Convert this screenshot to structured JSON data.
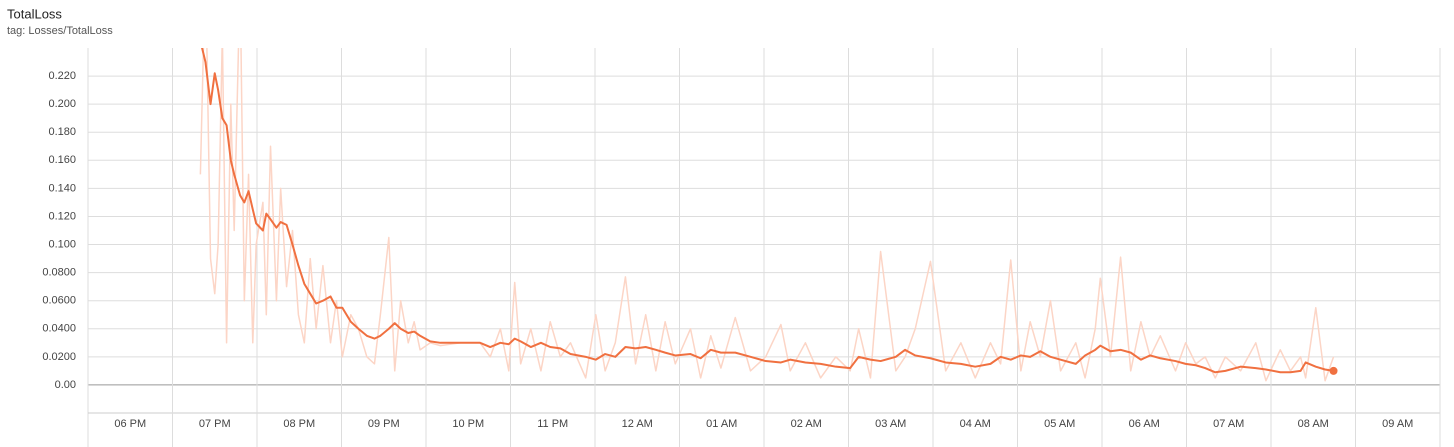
{
  "chart_data": {
    "type": "line",
    "title": "TotalLoss",
    "subtitle": "tag: Losses/TotalLoss",
    "x": [
      18.33,
      18.39,
      18.45,
      18.5,
      18.54,
      18.59,
      18.64,
      18.69,
      18.73,
      18.8,
      18.85,
      18.9,
      18.95,
      18.99,
      19.07,
      19.11,
      19.16,
      19.23,
      19.28,
      19.35,
      19.42,
      19.49,
      19.56,
      19.63,
      19.7,
      19.78,
      19.87,
      19.94,
      20.01,
      20.11,
      20.2,
      20.3,
      20.39,
      20.46,
      20.56,
      20.63,
      20.7,
      20.79,
      20.86,
      20.93,
      21.05,
      21.17,
      21.41,
      21.64,
      21.76,
      21.88,
      21.98,
      22.05,
      22.12,
      22.24,
      22.36,
      22.47,
      22.59,
      22.71,
      22.89,
      23.01,
      23.12,
      23.24,
      23.36,
      23.48,
      23.6,
      23.72,
      23.83,
      23.95,
      24.13,
      24.25,
      24.37,
      24.49,
      24.66,
      24.84,
      25.02,
      25.2,
      25.31,
      25.49,
      25.67,
      25.85,
      26.02,
      26.12,
      26.26,
      26.38,
      26.56,
      26.67,
      26.79,
      26.97,
      27.15,
      27.33,
      27.5,
      27.68,
      27.8,
      27.92,
      28.04,
      28.15,
      28.27,
      28.39,
      28.51,
      28.69,
      28.8,
      28.92,
      28.98,
      29.1,
      29.22,
      29.34,
      29.46,
      29.57,
      29.69,
      29.87,
      29.99,
      30.11,
      30.22,
      30.34,
      30.46,
      30.64,
      30.82,
      30.94,
      31.11,
      31.23,
      31.35,
      31.41,
      31.53,
      31.64,
      31.74
    ],
    "series": [
      {
        "color": "#fcd5c6",
        "values": [
          0.15,
          0.3,
          0.09,
          0.065,
          0.1,
          0.25,
          0.03,
          0.2,
          0.11,
          0.29,
          0.06,
          0.15,
          0.03,
          0.1,
          0.13,
          0.05,
          0.17,
          0.06,
          0.14,
          0.07,
          0.11,
          0.05,
          0.03,
          0.09,
          0.04,
          0.085,
          0.03,
          0.06,
          0.02,
          0.05,
          0.04,
          0.02,
          0.015,
          0.05,
          0.105,
          0.01,
          0.06,
          0.03,
          0.045,
          0.025,
          0.03,
          0.028,
          0.03,
          0.03,
          0.02,
          0.04,
          0.01,
          0.073,
          0.015,
          0.04,
          0.01,
          0.045,
          0.02,
          0.03,
          0.005,
          0.05,
          0.01,
          0.03,
          0.077,
          0.015,
          0.05,
          0.01,
          0.045,
          0.015,
          0.04,
          0.005,
          0.035,
          0.012,
          0.048,
          0.01,
          0.02,
          0.043,
          0.01,
          0.03,
          0.005,
          0.02,
          0.01,
          0.04,
          0.005,
          0.095,
          0.01,
          0.02,
          0.04,
          0.088,
          0.01,
          0.03,
          0.005,
          0.03,
          0.015,
          0.089,
          0.01,
          0.045,
          0.02,
          0.06,
          0.01,
          0.03,
          0.005,
          0.04,
          0.076,
          0.02,
          0.091,
          0.01,
          0.045,
          0.02,
          0.035,
          0.01,
          0.03,
          0.015,
          0.02,
          0.005,
          0.02,
          0.01,
          0.03,
          0.003,
          0.025,
          0.01,
          0.02,
          0.005,
          0.055,
          0.003,
          0.02
        ]
      },
      {
        "color": "#f07040",
        "values": [
          0.245,
          0.23,
          0.2,
          0.222,
          0.21,
          0.19,
          0.185,
          0.16,
          0.15,
          0.135,
          0.13,
          0.138,
          0.125,
          0.115,
          0.11,
          0.122,
          0.118,
          0.112,
          0.116,
          0.114,
          0.1,
          0.085,
          0.072,
          0.065,
          0.058,
          0.06,
          0.063,
          0.055,
          0.055,
          0.045,
          0.04,
          0.035,
          0.033,
          0.035,
          0.04,
          0.044,
          0.04,
          0.037,
          0.038,
          0.035,
          0.031,
          0.03,
          0.03,
          0.03,
          0.027,
          0.03,
          0.029,
          0.033,
          0.031,
          0.027,
          0.03,
          0.027,
          0.026,
          0.022,
          0.02,
          0.018,
          0.022,
          0.02,
          0.027,
          0.026,
          0.027,
          0.025,
          0.023,
          0.021,
          0.022,
          0.019,
          0.025,
          0.023,
          0.023,
          0.02,
          0.017,
          0.016,
          0.018,
          0.016,
          0.015,
          0.013,
          0.012,
          0.02,
          0.018,
          0.017,
          0.02,
          0.025,
          0.021,
          0.019,
          0.016,
          0.015,
          0.013,
          0.015,
          0.02,
          0.018,
          0.021,
          0.02,
          0.024,
          0.02,
          0.018,
          0.015,
          0.021,
          0.025,
          0.028,
          0.024,
          0.025,
          0.023,
          0.018,
          0.021,
          0.019,
          0.017,
          0.015,
          0.014,
          0.012,
          0.009,
          0.01,
          0.013,
          0.012,
          0.011,
          0.009,
          0.009,
          0.01,
          0.016,
          0.013,
          0.011,
          0.01
        ]
      }
    ],
    "xlim": [
      17,
      33
    ],
    "xticks": [
      {
        "value": 18,
        "label": "06 PM"
      },
      {
        "value": 19,
        "label": "07 PM"
      },
      {
        "value": 20,
        "label": "08 PM"
      },
      {
        "value": 21,
        "label": "09 PM"
      },
      {
        "value": 22,
        "label": "10 PM"
      },
      {
        "value": 23,
        "label": "11 PM"
      },
      {
        "value": 24,
        "label": "12 AM"
      },
      {
        "value": 25,
        "label": "01 AM"
      },
      {
        "value": 26,
        "label": "02 AM"
      },
      {
        "value": 27,
        "label": "03 AM"
      },
      {
        "value": 28,
        "label": "04 AM"
      },
      {
        "value": 29,
        "label": "05 AM"
      },
      {
        "value": 30,
        "label": "06 AM"
      },
      {
        "value": 31,
        "label": "07 AM"
      },
      {
        "value": 32,
        "label": "08 AM"
      },
      {
        "value": 33,
        "label": "09 AM"
      }
    ],
    "ylim": [
      -0.02,
      0.24
    ],
    "yticks": [
      {
        "value": 0,
        "label": "0.00"
      },
      {
        "value": 0.02,
        "label": "0.0200"
      },
      {
        "value": 0.04,
        "label": "0.0400"
      },
      {
        "value": 0.06,
        "label": "0.0600"
      },
      {
        "value": 0.08,
        "label": "0.0800"
      },
      {
        "value": 0.1,
        "label": "0.100"
      },
      {
        "value": 0.12,
        "label": "0.120"
      },
      {
        "value": 0.14,
        "label": "0.140"
      },
      {
        "value": 0.16,
        "label": "0.160"
      },
      {
        "value": 0.18,
        "label": "0.180"
      },
      {
        "value": 0.2,
        "label": "0.200"
      },
      {
        "value": 0.22,
        "label": "0.220"
      }
    ],
    "grid": true
  }
}
